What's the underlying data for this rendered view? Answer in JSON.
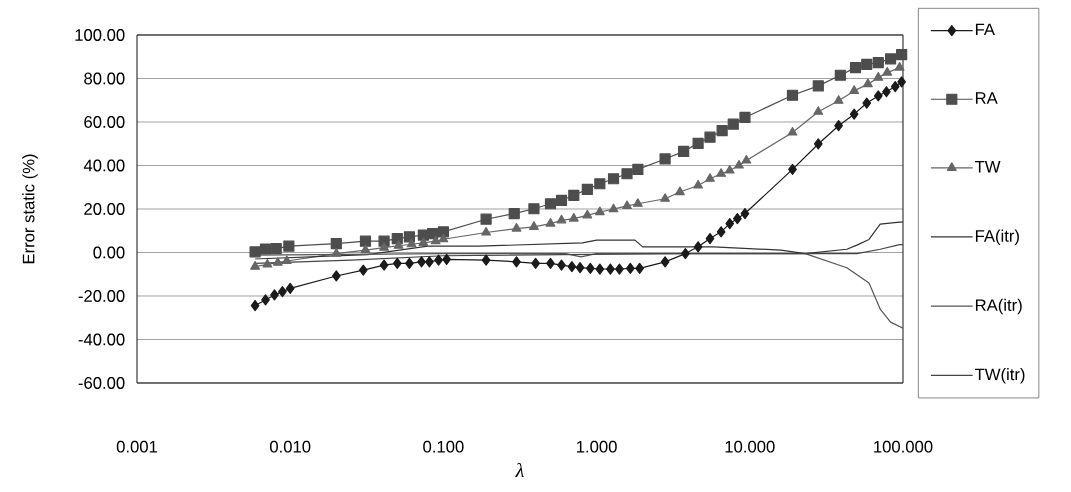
{
  "chart_data": {
    "type": "line",
    "xlabel": "λ",
    "ylabel": "Error static (%)",
    "log": "x",
    "grid": "y",
    "legend": "right",
    "xlim": [
      0.001,
      100
    ],
    "ylim": [
      -60,
      100
    ],
    "xticks": [
      {
        "value": 0.001,
        "label": "0.001"
      },
      {
        "value": 0.01,
        "label": "0.010"
      },
      {
        "value": 0.1,
        "label": "0.100"
      },
      {
        "value": 1,
        "label": "1.000"
      },
      {
        "value": 10,
        "label": "10.000"
      },
      {
        "value": 100,
        "label": "100.000"
      }
    ],
    "yticks": [
      {
        "value": -60,
        "label": "-60.00"
      },
      {
        "value": -40,
        "label": "-40.00"
      },
      {
        "value": -20,
        "label": "-20.00"
      },
      {
        "value": 0,
        "label": "0.00"
      },
      {
        "value": 20,
        "label": "20.00"
      },
      {
        "value": 40,
        "label": "40.00"
      },
      {
        "value": 60,
        "label": "60.00"
      },
      {
        "value": 80,
        "label": "80.00"
      },
      {
        "value": 100,
        "label": "100.00"
      }
    ],
    "series": [
      {
        "name": "FA",
        "color": "#1a1a1a",
        "marker": "diamond",
        "x": [
          0.0059,
          0.0069,
          0.0079,
          0.0089,
          0.01,
          0.02,
          0.03,
          0.041,
          0.05,
          0.06,
          0.072,
          0.081,
          0.093,
          0.105,
          0.19,
          0.3,
          0.4,
          0.5,
          0.59,
          0.69,
          0.78,
          0.91,
          1.05,
          1.23,
          1.41,
          1.66,
          1.91,
          2.8,
          3.8,
          4.6,
          5.5,
          6.5,
          7.4,
          8.3,
          9.3,
          19,
          28,
          38,
          48,
          58,
          69,
          78,
          89,
          98
        ],
        "values": [
          -24.4,
          -21.8,
          -19.5,
          -18.0,
          -16.5,
          -10.8,
          -8.1,
          -5.8,
          -5.0,
          -5.0,
          -4.3,
          -4.3,
          -3.5,
          -3.2,
          -3.5,
          -4.3,
          -5.0,
          -5.0,
          -5.8,
          -6.5,
          -7.0,
          -7.3,
          -7.6,
          -7.6,
          -7.6,
          -7.3,
          -7.3,
          -4.3,
          -0.5,
          2.6,
          6.4,
          9.5,
          13.3,
          15.6,
          17.9,
          38.2,
          49.9,
          58.3,
          63.6,
          68.7,
          72.0,
          73.9,
          76.3,
          78.4
        ]
      },
      {
        "name": "RA",
        "color": "#4d4d4d",
        "marker": "square",
        "x": [
          0.0059,
          0.0069,
          0.0081,
          0.0098,
          0.02,
          0.031,
          0.041,
          0.05,
          0.06,
          0.074,
          0.085,
          0.1,
          0.19,
          0.29,
          0.39,
          0.5,
          0.59,
          0.71,
          0.87,
          1.05,
          1.29,
          1.58,
          1.86,
          2.8,
          3.7,
          4.6,
          5.5,
          6.6,
          7.8,
          9.3,
          19,
          28,
          39,
          49,
          58,
          69,
          83,
          98
        ],
        "values": [
          0.3,
          1.6,
          1.8,
          2.9,
          4.1,
          5.2,
          5.2,
          6.4,
          7.2,
          8.0,
          8.7,
          9.5,
          15.3,
          17.9,
          20.1,
          22.4,
          24.0,
          26.3,
          29.0,
          31.6,
          33.9,
          36.2,
          38.2,
          43.0,
          46.5,
          50.2,
          53.0,
          56.0,
          59.0,
          62.1,
          72.3,
          76.6,
          81.5,
          85.0,
          86.5,
          87.3,
          89.0,
          91.0
        ]
      },
      {
        "name": "TW",
        "color": "#666666",
        "marker": "triangle",
        "x": [
          0.0059,
          0.0071,
          0.0083,
          0.0095,
          0.02,
          0.031,
          0.041,
          0.051,
          0.062,
          0.074,
          0.089,
          0.1,
          0.19,
          0.3,
          0.39,
          0.5,
          0.59,
          0.71,
          0.87,
          1.05,
          1.29,
          1.58,
          1.86,
          2.8,
          3.5,
          4.6,
          5.5,
          6.5,
          7.4,
          8.5,
          9.5,
          19,
          28,
          38,
          48,
          59,
          69,
          79,
          95
        ],
        "values": [
          -6.5,
          -5.5,
          -4.7,
          -3.9,
          -0.5,
          1.1,
          2.2,
          3.1,
          3.8,
          4.4,
          5.2,
          6.1,
          9.2,
          11.0,
          11.8,
          13.3,
          14.8,
          15.6,
          17.1,
          18.6,
          19.9,
          21.4,
          22.4,
          24.7,
          27.8,
          30.8,
          33.9,
          36.2,
          37.7,
          40.0,
          42.3,
          55.2,
          64.7,
          69.8,
          74.3,
          77.4,
          80.4,
          82.7,
          85.0
        ]
      },
      {
        "name": "FA(itr)",
        "color": "#333333",
        "marker": "none",
        "x": [
          0.0059,
          0.032,
          0.079,
          0.17,
          0.81,
          1.0,
          1.78,
          2.0,
          5.8,
          16,
          23,
          43,
          50,
          60,
          71,
          95,
          100
        ],
        "values": [
          -3.0,
          -1.0,
          2.9,
          2.9,
          4.4,
          5.7,
          5.7,
          2.6,
          2.6,
          1.1,
          -0.5,
          1.5,
          3.4,
          6.0,
          13.0,
          14.0,
          14.0
        ]
      },
      {
        "name": "RA(itr)",
        "color": "#555555",
        "marker": "none",
        "x": [
          0.0059,
          0.1,
          0.63,
          0.79,
          1.0,
          23,
          43,
          60,
          71,
          83,
          100
        ],
        "values": [
          -1.2,
          -0.5,
          -0.5,
          -2.0,
          -0.5,
          -0.5,
          -7.0,
          -14.0,
          -26.0,
          -32.0,
          -34.8
        ]
      },
      {
        "name": "TW(itr)",
        "color": "#444444",
        "marker": "none",
        "x": [
          0.0059,
          0.025,
          0.1,
          3.2,
          50,
          71,
          95,
          100
        ],
        "values": [
          -5.0,
          -3.5,
          -1.5,
          -0.5,
          -0.5,
          1.5,
          3.6,
          3.6
        ]
      }
    ]
  }
}
